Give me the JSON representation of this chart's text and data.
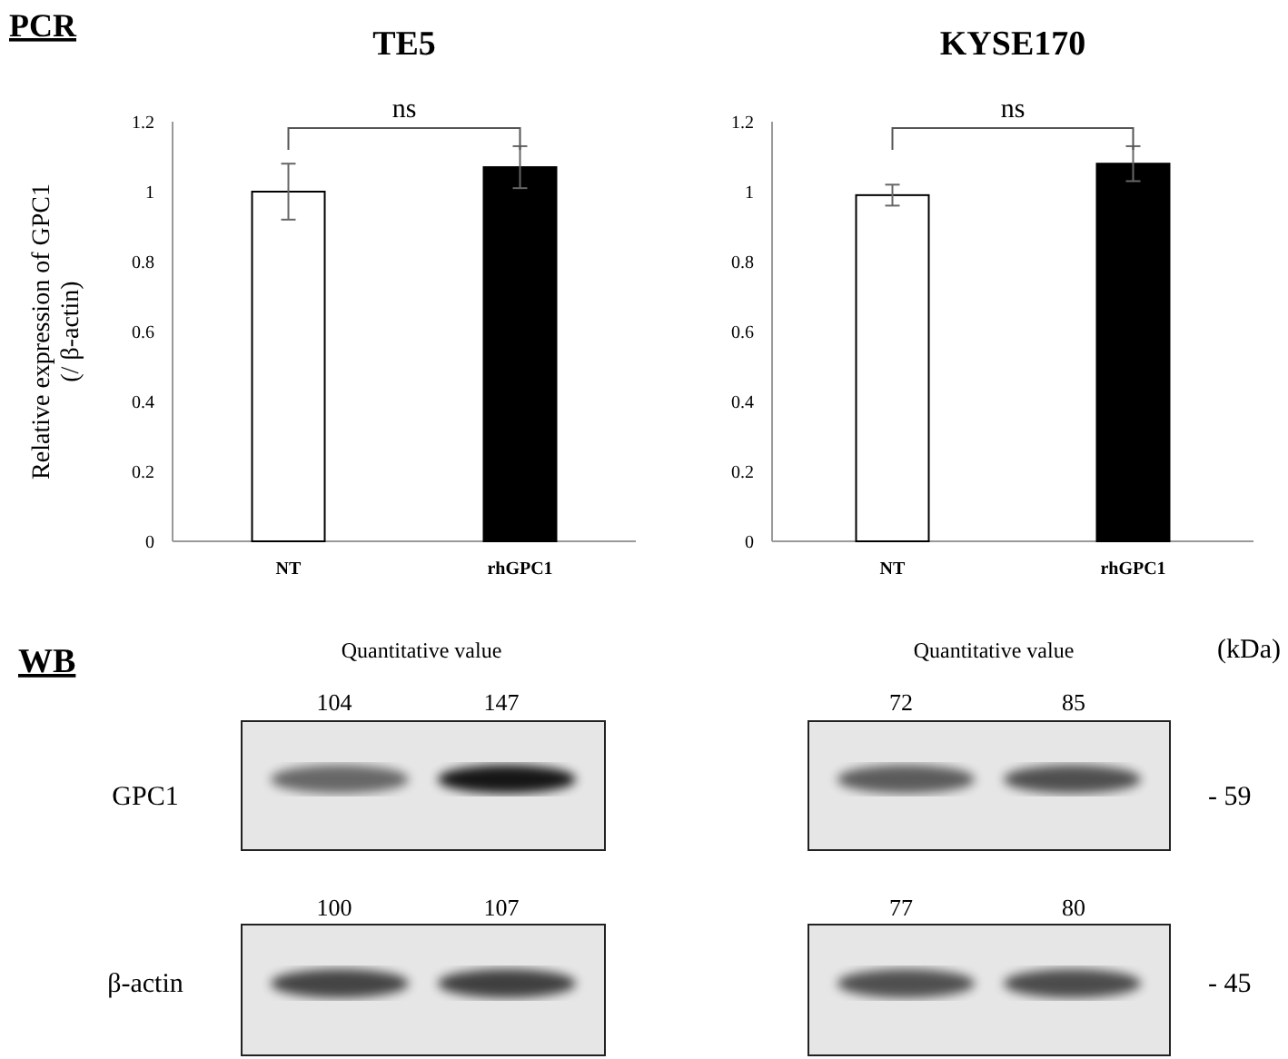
{
  "chart_data": [
    {
      "type": "bar",
      "title": "TE5",
      "ylabel": "Relative expression of GPC1\n(/ β-actin)",
      "categories": [
        "NT",
        "rhGPC1"
      ],
      "values": [
        1.0,
        1.07
      ],
      "errors": [
        0.08,
        0.06
      ],
      "colors": [
        "#ffffff",
        "#000000"
      ],
      "ylim": [
        0,
        1.2
      ],
      "yticks": [
        0,
        0.2,
        0.4,
        0.6,
        0.8,
        1,
        1.2
      ],
      "annotations": [
        "PCR",
        "ns"
      ]
    },
    {
      "type": "bar",
      "title": "KYSE170",
      "categories": [
        "NT",
        "rhGPC1"
      ],
      "values": [
        0.99,
        1.08
      ],
      "errors": [
        0.03,
        0.05
      ],
      "colors": [
        "#ffffff",
        "#000000"
      ],
      "ylim": [
        0,
        1.2
      ],
      "yticks": [
        0,
        0.2,
        0.4,
        0.6,
        0.8,
        1,
        1.2
      ],
      "annotations": [
        "ns"
      ]
    },
    {
      "type": "other",
      "title": "WB",
      "annotations": [
        "Quantitative value",
        "104",
        "147",
        "Quantitative value",
        "72",
        "85",
        "(kDa)",
        "GPC1",
        "- 59",
        "100",
        "107",
        "77",
        "80",
        "β-actin",
        "- 45"
      ]
    }
  ]
}
